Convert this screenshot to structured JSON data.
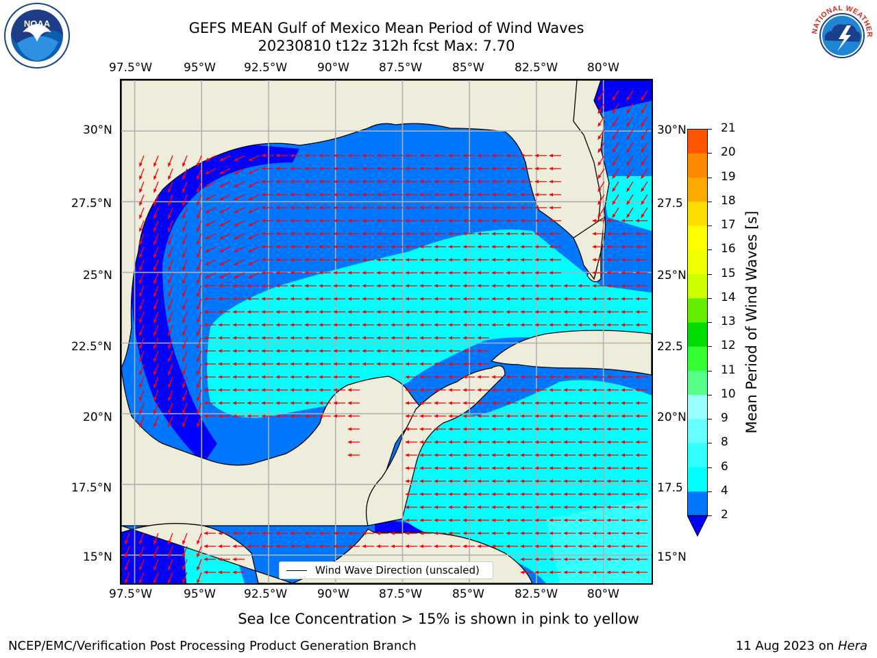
{
  "header": {
    "title_line1": "GEFS MEAN Gulf of Mexico Mean Period of Wind Waves",
    "title_line2": "20230810 t12z 312h fcst   Max: 7.70"
  },
  "map": {
    "lon_ticks": [
      "97.5°W",
      "95°W",
      "92.5°W",
      "90°W",
      "87.5°W",
      "85°W",
      "82.5°W",
      "80°W"
    ],
    "lat_ticks_left": [
      "30°N",
      "27.5°N",
      "25°N",
      "22.5°N",
      "20°N",
      "17.5°N",
      "15°N"
    ],
    "lat_ticks_right": [
      "30°N",
      "27.5",
      "25°N",
      "22.5",
      "20°N",
      "17.5",
      "15°N"
    ],
    "extent": {
      "lon_min": -98.0,
      "lon_max": -78.2,
      "lat_min": 14.0,
      "lat_max": 31.8
    },
    "legend_label": "Wind Wave Direction (unscaled)",
    "land_color": "#eeecdb",
    "arrow_color": "#ff0000",
    "field_max": 7.7
  },
  "colorbar": {
    "label": "Mean Period of Wind Waves [s]",
    "ticks": [
      "21",
      "20",
      "19",
      "18",
      "17",
      "16",
      "15",
      "14",
      "13",
      "12",
      "11",
      "10",
      "9",
      "8",
      "6",
      "4",
      "2"
    ],
    "levels": [
      2,
      4,
      6,
      8,
      9,
      10,
      11,
      12,
      13,
      14,
      15,
      16,
      17,
      18,
      19,
      20,
      21
    ],
    "colors": [
      "#0077ff",
      "#00ffff",
      "#33ffff",
      "#66ffff",
      "#99ffff",
      "#55ff88",
      "#33ff33",
      "#00dd00",
      "#66ee00",
      "#ccff00",
      "#eeff00",
      "#ffff00",
      "#ffdd00",
      "#ffaa00",
      "#ff8800",
      "#ff5500",
      "#ff2200",
      "#ff0000"
    ],
    "under_color": "#0000ff"
  },
  "caption": "Sea Ice Concentration > 15% is shown in pink to yellow",
  "footer": {
    "left": "NCEP/EMC/Verification Post Processing Product Generation Branch",
    "right_prefix": "11 Aug 2023 on ",
    "right_host": "Hera"
  },
  "logos": {
    "noaa_text": "NOAA",
    "nws_text": "NATIONAL WEATHER SERVICE"
  }
}
